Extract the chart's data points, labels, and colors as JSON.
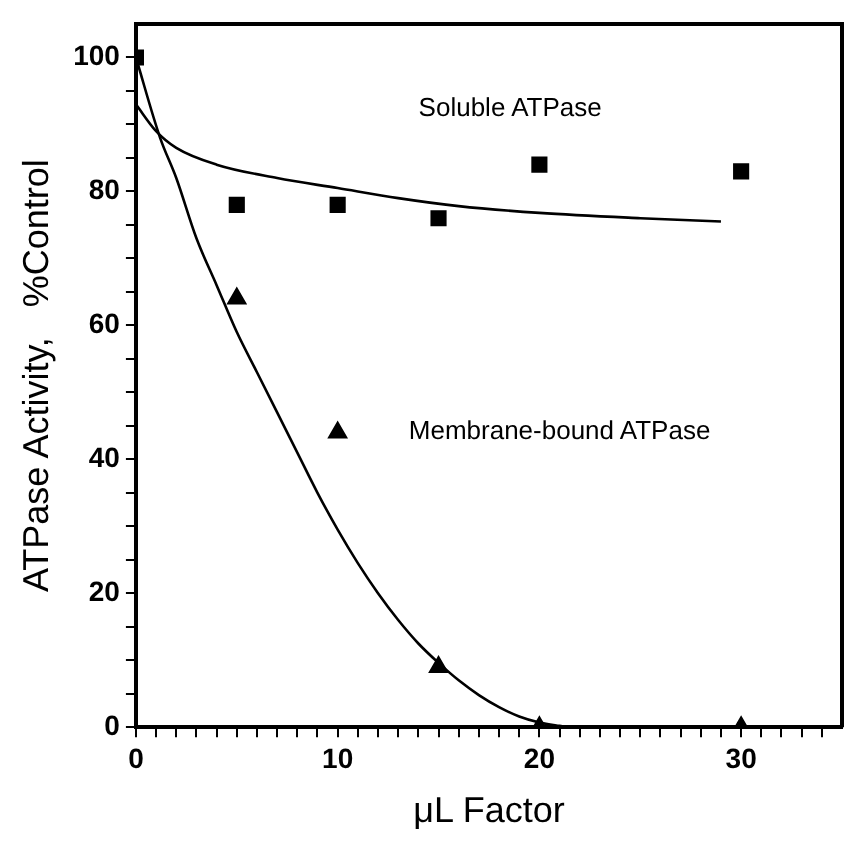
{
  "chart_data": {
    "type": "scatter",
    "xlabel": "μL Factor",
    "ylabel": "ATPase Activity,   %Control",
    "xlim": [
      0,
      35
    ],
    "ylim": [
      0,
      105
    ],
    "xticks": [
      0,
      {
        "value": 1,
        "label": null
      },
      {
        "value": 2,
        "label": null
      },
      {
        "value": 3,
        "label": null
      },
      {
        "value": 4,
        "label": null
      },
      {
        "value": 5,
        "label": null
      },
      {
        "value": 6,
        "label": null
      },
      {
        "value": 7,
        "label": null
      },
      {
        "value": 8,
        "label": null
      },
      {
        "value": 9,
        "label": null
      },
      10,
      {
        "value": 11,
        "label": null
      },
      {
        "value": 12,
        "label": null
      },
      {
        "value": 13,
        "label": null
      },
      {
        "value": 14,
        "label": null
      },
      {
        "value": 15,
        "label": null
      },
      {
        "value": 16,
        "label": null
      },
      {
        "value": 17,
        "label": null
      },
      {
        "value": 18,
        "label": null
      },
      {
        "value": 19,
        "label": null
      },
      20,
      {
        "value": 21,
        "label": null
      },
      {
        "value": 22,
        "label": null
      },
      {
        "value": 23,
        "label": null
      },
      {
        "value": 24,
        "label": null
      },
      {
        "value": 25,
        "label": null
      },
      {
        "value": 26,
        "label": null
      },
      {
        "value": 27,
        "label": null
      },
      {
        "value": 28,
        "label": null
      },
      {
        "value": 29,
        "label": null
      },
      30,
      {
        "value": 31,
        "label": null
      },
      {
        "value": 32,
        "label": null
      },
      {
        "value": 33,
        "label": null
      },
      {
        "value": 34,
        "label": null
      }
    ],
    "yticks": [
      0,
      {
        "value": 5,
        "label": null
      },
      {
        "value": 10,
        "label": null
      },
      {
        "value": 15,
        "label": null
      },
      20,
      {
        "value": 25,
        "label": null
      },
      {
        "value": 30,
        "label": null
      },
      {
        "value": 35,
        "label": null
      },
      40,
      {
        "value": 45,
        "label": null
      },
      {
        "value": 50,
        "label": null
      },
      {
        "value": 55,
        "label": null
      },
      60,
      {
        "value": 65,
        "label": null
      },
      {
        "value": 70,
        "label": null
      },
      {
        "value": 75,
        "label": null
      },
      80,
      {
        "value": 85,
        "label": null
      },
      {
        "value": 90,
        "label": null
      },
      {
        "value": 95,
        "label": null
      },
      100
    ],
    "grid": false,
    "legend": false,
    "series": [
      {
        "type": "scatter",
        "marker": "square",
        "color": "#000000",
        "x": [
          0,
          5,
          10,
          15,
          20,
          30
        ],
        "values": [
          100,
          78,
          78,
          76,
          84,
          83
        ]
      },
      {
        "type": "scatter",
        "marker": "triangle",
        "color": "#000000",
        "x": [
          5,
          10,
          15,
          20,
          30
        ],
        "values": [
          64,
          44,
          9,
          0,
          0
        ]
      },
      {
        "type": "line",
        "marker": "none",
        "color": "#000000",
        "x": [
          0,
          1,
          2,
          4,
          7,
          10,
          13,
          16,
          20,
          25,
          29
        ],
        "values": [
          93,
          89,
          86.5,
          84,
          82,
          80.5,
          79,
          77.8,
          76.8,
          76,
          75.5
        ]
      },
      {
        "type": "line",
        "marker": "none",
        "color": "#000000",
        "x": [
          0,
          1.2,
          2,
          3,
          4,
          5,
          6,
          7,
          8,
          9,
          10,
          11,
          12,
          13,
          14,
          15,
          16,
          17,
          18,
          19,
          20,
          21,
          21.5
        ],
        "values": [
          100,
          88,
          82,
          73,
          66,
          59,
          53,
          47,
          41,
          35,
          29.5,
          24.5,
          20,
          16,
          12.5,
          9.6,
          7,
          4.8,
          3,
          1.6,
          0.7,
          0.2,
          0
        ]
      }
    ],
    "annotations": [
      "Soluble ATPase",
      "Membrane-bound ATPase"
    ]
  }
}
